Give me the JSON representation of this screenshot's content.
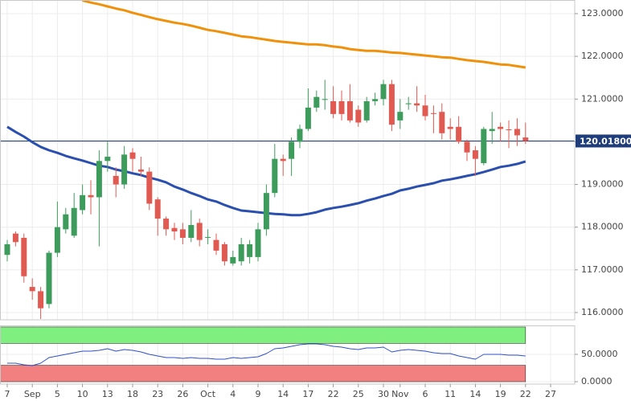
{
  "chart_data": [
    {
      "type": "candlestick",
      "categories": [
        "7",
        null,
        null,
        "Sep",
        null,
        null,
        "5",
        null,
        null,
        "10",
        null,
        null,
        "13",
        null,
        null,
        "18",
        null,
        null,
        "23",
        null,
        null,
        "26",
        null,
        null,
        "Oct",
        null,
        null,
        "4",
        null,
        null,
        "9",
        null,
        null,
        "14",
        null,
        null,
        "17",
        null,
        null,
        "22",
        null,
        null,
        "25",
        null,
        null,
        "30",
        null,
        "Nov",
        null,
        null,
        "6",
        null,
        null,
        "11",
        null,
        null,
        "14",
        null,
        null,
        "19",
        null,
        null,
        "22",
        null,
        null,
        "27"
      ],
      "open": [
        117.35,
        117.85,
        117.75,
        116.6,
        116.5,
        116.2,
        117.4,
        117.95,
        117.8,
        118.4,
        118.75,
        118.7,
        119.55,
        119.2,
        119.0,
        119.75,
        119.35,
        119.3,
        118.65,
        118.2,
        117.98,
        117.95,
        117.75,
        118.1,
        117.75,
        117.7,
        117.6,
        117.15,
        117.2,
        117.3,
        117.3,
        117.95,
        118.8,
        119.6,
        119.6,
        120.0,
        120.3,
        120.8,
        120.98,
        120.95,
        120.95,
        120.95,
        120.75,
        120.5,
        120.95,
        121.0,
        121.35,
        120.5,
        120.88,
        120.9,
        120.85,
        120.67,
        120.7,
        120.35,
        120.35,
        120.0,
        119.8,
        119.5,
        120.25,
        120.35,
        120.29,
        120.3,
        120.1,
        null,
        null,
        null
      ],
      "high": [
        117.7,
        117.9,
        117.85,
        116.8,
        116.6,
        117.45,
        118.6,
        118.45,
        118.8,
        119.0,
        119.1,
        119.8,
        120.0,
        119.4,
        119.9,
        119.85,
        119.65,
        119.4,
        118.7,
        118.25,
        118.1,
        118.1,
        118.4,
        118.2,
        117.95,
        117.85,
        117.65,
        117.45,
        117.75,
        117.7,
        118.1,
        119.0,
        119.95,
        119.7,
        120.1,
        120.4,
        121.25,
        121.2,
        121.45,
        121.3,
        121.2,
        121.35,
        120.85,
        121.05,
        121.15,
        121.45,
        121.45,
        121.0,
        121.05,
        121.3,
        121.1,
        120.85,
        120.9,
        120.55,
        120.6,
        120.05,
        119.9,
        120.35,
        120.7,
        120.45,
        120.5,
        120.55,
        120.45,
        null,
        null,
        null
      ],
      "low": [
        117.2,
        117.55,
        116.7,
        116.3,
        115.85,
        116.1,
        117.3,
        117.85,
        117.75,
        118.3,
        118.3,
        117.55,
        119.3,
        118.7,
        118.9,
        119.3,
        119.2,
        118.4,
        117.8,
        117.8,
        117.7,
        117.6,
        117.65,
        117.55,
        117.6,
        117.35,
        117.1,
        117.1,
        117.1,
        117.15,
        117.2,
        117.8,
        118.7,
        119.2,
        119.2,
        119.85,
        120.25,
        120.7,
        120.75,
        120.55,
        120.5,
        120.45,
        120.35,
        120.45,
        120.85,
        120.85,
        120.25,
        120.3,
        120.75,
        120.7,
        120.5,
        120.2,
        120.05,
        120.05,
        119.95,
        119.55,
        119.2,
        119.45,
        119.95,
        120.0,
        119.85,
        119.9,
        119.95,
        null,
        null,
        null
      ],
      "close": [
        117.6,
        117.65,
        116.85,
        116.5,
        116.1,
        117.4,
        118.0,
        118.3,
        118.45,
        118.75,
        118.7,
        119.55,
        119.65,
        119.0,
        119.7,
        119.6,
        119.3,
        118.55,
        118.2,
        117.95,
        117.9,
        117.75,
        118.05,
        117.7,
        117.77,
        117.45,
        117.2,
        117.3,
        117.6,
        117.6,
        117.95,
        118.8,
        119.6,
        119.55,
        120.0,
        120.3,
        120.8,
        121.05,
        121.0,
        120.65,
        120.65,
        120.5,
        120.45,
        120.95,
        121.0,
        121.35,
        120.4,
        120.7,
        120.9,
        120.85,
        120.6,
        120.65,
        120.2,
        120.3,
        120.0,
        119.75,
        119.6,
        120.3,
        120.3,
        120.3,
        120.27,
        120.15,
        120.02,
        null,
        null,
        null
      ],
      "up_color": "#3d9c5c",
      "down_color": "#e05a52",
      "series": [
        {
          "color": "#2b4fae",
          "values": [
            120.35,
            120.23,
            120.12,
            119.99,
            119.88,
            119.8,
            119.74,
            119.67,
            119.61,
            119.56,
            119.5,
            119.44,
            119.41,
            119.35,
            119.31,
            119.26,
            119.22,
            119.16,
            119.11,
            119.05,
            118.95,
            118.88,
            118.8,
            118.73,
            118.65,
            118.6,
            118.52,
            118.45,
            118.39,
            118.37,
            118.35,
            118.33,
            118.31,
            118.3,
            118.28,
            118.28,
            118.31,
            118.35,
            118.41,
            118.45,
            118.48,
            118.52,
            118.56,
            118.62,
            118.67,
            118.73,
            118.78,
            118.86,
            118.9,
            118.95,
            118.99,
            119.03,
            119.09,
            119.12,
            119.16,
            119.2,
            119.24,
            119.29,
            119.35,
            119.41,
            119.44,
            119.48,
            119.54,
            null,
            null,
            null
          ]
        },
        {
          "color": "#f0910c",
          "values": [
            null,
            null,
            null,
            null,
            null,
            null,
            null,
            null,
            null,
            123.31,
            123.26,
            123.22,
            123.17,
            123.12,
            123.08,
            123.02,
            122.97,
            122.92,
            122.87,
            122.83,
            122.79,
            122.76,
            122.72,
            122.67,
            122.62,
            122.59,
            122.55,
            122.51,
            122.47,
            122.45,
            122.42,
            122.39,
            122.36,
            122.34,
            122.32,
            122.3,
            122.28,
            122.28,
            122.26,
            122.23,
            122.21,
            122.17,
            122.15,
            122.13,
            122.13,
            122.11,
            122.09,
            122.08,
            122.06,
            122.04,
            122.02,
            122.0,
            121.98,
            121.97,
            121.94,
            121.91,
            121.89,
            121.87,
            121.84,
            121.81,
            121.8,
            121.77,
            121.74,
            null,
            null,
            null
          ]
        }
      ],
      "last_price": {
        "value": 120.018,
        "label": "120.01800"
      },
      "last_price_color": "#1f3d7a",
      "ylim": [
        115.83,
        123.32
      ],
      "yticks": [
        {
          "value": 116,
          "label": "116.0000"
        },
        {
          "value": 117,
          "label": "117.0000"
        },
        {
          "value": 118,
          "label": "118.0000"
        },
        {
          "value": 119,
          "label": "119.0000"
        },
        {
          "value": 120,
          "label": "120.0000"
        },
        {
          "value": 121,
          "label": "121.0000"
        },
        {
          "value": 122,
          "label": "122.0000"
        },
        {
          "value": 123,
          "label": "123.0000"
        }
      ],
      "grid": true
    },
    {
      "type": "line",
      "series": [
        {
          "color": "#2f50c8",
          "values": [
            33.8,
            33.8,
            30.9,
            29.4,
            33.8,
            44.1,
            47.1,
            50.0,
            52.9,
            55.9,
            55.9,
            57.4,
            60.3,
            55.9,
            58.8,
            57.4,
            54.4,
            50.0,
            47.1,
            44.1,
            44.1,
            42.6,
            44.1,
            42.6,
            42.6,
            41.2,
            41.2,
            44.1,
            42.6,
            44.1,
            45.6,
            51.5,
            60.3,
            61.8,
            64.7,
            67.6,
            69.1,
            69.1,
            67.6,
            64.7,
            63.2,
            60.3,
            58.8,
            61.8,
            61.8,
            63.2,
            54.4,
            57.4,
            58.8,
            57.4,
            55.9,
            52.9,
            51.5,
            51.5,
            47.1,
            44.1,
            41.2,
            50.0,
            50.0,
            50.0,
            48.5,
            48.5,
            47.1,
            null,
            null,
            null
          ]
        }
      ],
      "zones": [
        {
          "from": 70,
          "to": 100,
          "color": "#7ff07f"
        },
        {
          "from": 0,
          "to": 30,
          "color": "#f28080"
        }
      ],
      "ylim": [
        -4.4,
        102.9
      ],
      "yticks": [
        {
          "value": 0,
          "label": "0.0000"
        },
        {
          "value": 50,
          "label": "50.0000"
        }
      ],
      "grid": true
    }
  ]
}
